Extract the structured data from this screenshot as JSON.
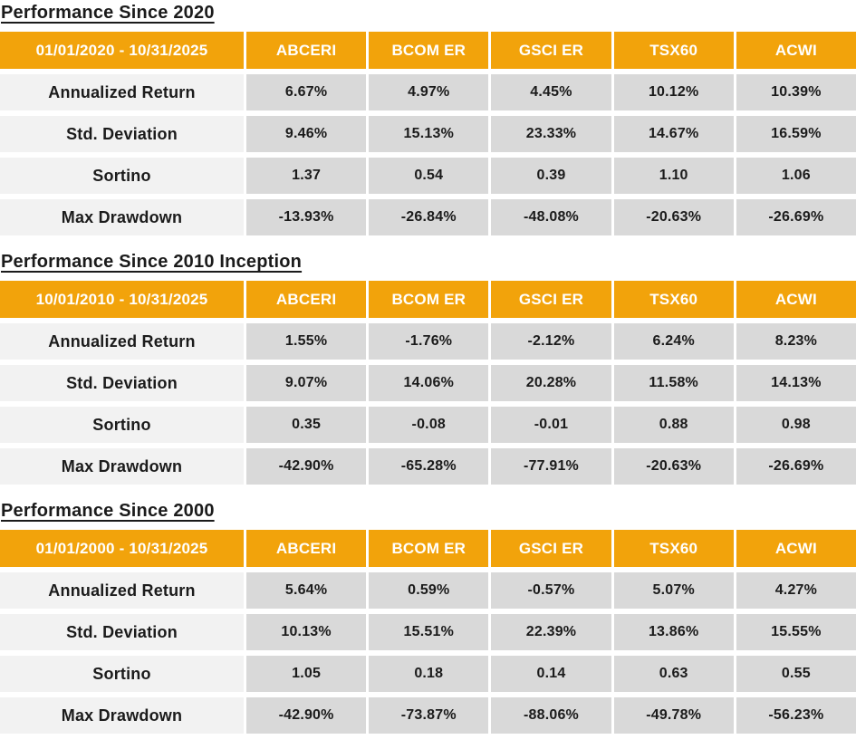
{
  "colors": {
    "header_bg": "#F2A30B",
    "header_text": "#FFFFFF",
    "label_bg": "#F2F2F2",
    "value_bg": "#D9D9D9",
    "text": "#1B1B1B",
    "page_bg": "#FFFFFF"
  },
  "columns": [
    "ABCERI",
    "BCOM ER",
    "GSCI ER",
    "TSX60",
    "ACWI"
  ],
  "sections": [
    {
      "title": "Performance Since 2020",
      "date_range": "01/01/2020 - 10/31/2025",
      "rows": [
        {
          "label": "Annualized Return",
          "values": [
            "6.67%",
            "4.97%",
            "4.45%",
            "10.12%",
            "10.39%"
          ]
        },
        {
          "label": "Std. Deviation",
          "values": [
            "9.46%",
            "15.13%",
            "23.33%",
            "14.67%",
            "16.59%"
          ]
        },
        {
          "label": "Sortino",
          "values": [
            "1.37",
            "0.54",
            "0.39",
            "1.10",
            "1.06"
          ]
        },
        {
          "label": "Max Drawdown",
          "values": [
            "-13.93%",
            "-26.84%",
            "-48.08%",
            "-20.63%",
            "-26.69%"
          ]
        }
      ]
    },
    {
      "title": "Performance Since 2010 Inception",
      "date_range": "10/01/2010 - 10/31/2025",
      "rows": [
        {
          "label": "Annualized Return",
          "values": [
            "1.55%",
            "-1.76%",
            "-2.12%",
            "6.24%",
            "8.23%"
          ]
        },
        {
          "label": "Std. Deviation",
          "values": [
            "9.07%",
            "14.06%",
            "20.28%",
            "11.58%",
            "14.13%"
          ]
        },
        {
          "label": "Sortino",
          "values": [
            "0.35",
            "-0.08",
            "-0.01",
            "0.88",
            "0.98"
          ]
        },
        {
          "label": "Max Drawdown",
          "values": [
            "-42.90%",
            "-65.28%",
            "-77.91%",
            "-20.63%",
            "-26.69%"
          ]
        }
      ]
    },
    {
      "title": "Performance Since 2000",
      "date_range": "01/01/2000 - 10/31/2025",
      "rows": [
        {
          "label": "Annualized Return",
          "values": [
            "5.64%",
            "0.59%",
            "-0.57%",
            "5.07%",
            "4.27%"
          ]
        },
        {
          "label": "Std. Deviation",
          "values": [
            "10.13%",
            "15.51%",
            "22.39%",
            "13.86%",
            "15.55%"
          ]
        },
        {
          "label": "Sortino",
          "values": [
            "1.05",
            "0.18",
            "0.14",
            "0.63",
            "0.55"
          ]
        },
        {
          "label": "Max Drawdown",
          "values": [
            "-42.90%",
            "-73.87%",
            "-88.06%",
            "-49.78%",
            "-56.23%"
          ]
        }
      ]
    }
  ]
}
